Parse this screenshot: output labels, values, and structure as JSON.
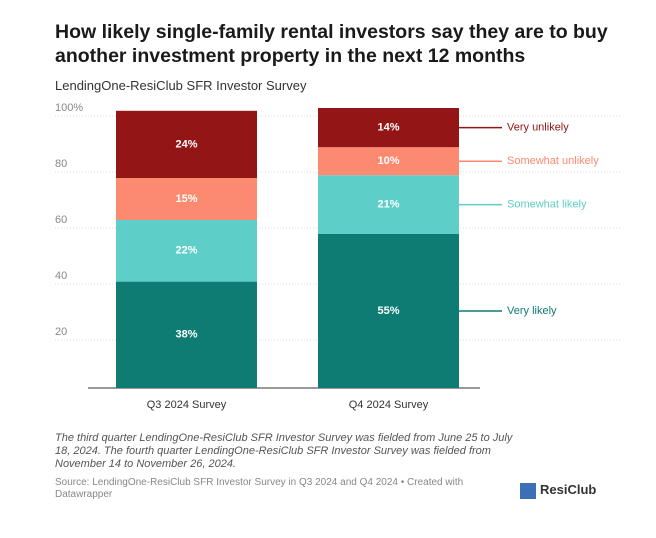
{
  "chart_data": {
    "type": "stacked_bar",
    "title": "How likely single-family rental investors say they are to buy another investment property in the next 12 months",
    "subtitle": "LendingOne-ResiClub SFR Investor Survey",
    "categories": [
      "Q3 2024 Survey",
      "Q4 2024 Survey"
    ],
    "series": [
      {
        "name": "Very likely",
        "color": "#0e7c73",
        "values": [
          38,
          55
        ],
        "value_labels": [
          "38%",
          "55%"
        ]
      },
      {
        "name": "Somewhat likely",
        "color": "#5ecfc8",
        "values": [
          22,
          21
        ],
        "value_labels": [
          "22%",
          "21%"
        ]
      },
      {
        "name": "Somewhat unlikely",
        "color": "#fc8a70",
        "values": [
          15,
          10
        ],
        "value_labels": [
          "15%",
          "10%"
        ]
      },
      {
        "name": "Very unlikely",
        "color": "#931515",
        "values": [
          24,
          14
        ],
        "value_labels": [
          "24%",
          "14%"
        ]
      }
    ],
    "ylim": [
      0,
      100
    ],
    "yticks": [
      20,
      40,
      60,
      80,
      {
        "value": 100,
        "label": "100%"
      }
    ],
    "grid": true,
    "legend": "right",
    "notes": "The third quarter LendingOne-ResiClub SFR Investor Survey was fielded from June 25 to July 18, 2024. The fourth quarter LendingOne-ResiClub SFR Investor Survey was fielded from November 14 to November 26, 2024.",
    "source": "Source: LendingOne-ResiClub SFR Investor Survey in Q3 2024 and Q4 2024 • Created with Datawrapper",
    "logo": "ResiClub"
  }
}
